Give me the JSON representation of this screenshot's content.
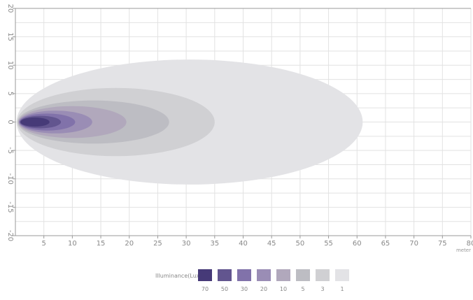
{
  "chart_data": {
    "type": "area",
    "subtype": "isolux-contour",
    "title": "",
    "xlabel": "meter",
    "ylabel": "",
    "xlim": [
      0,
      80
    ],
    "ylim": [
      -20,
      20
    ],
    "x_ticks": [
      5,
      10,
      15,
      20,
      25,
      30,
      35,
      40,
      45,
      50,
      55,
      60,
      65,
      70,
      75,
      80
    ],
    "y_ticks": [
      20,
      15,
      10,
      5,
      0,
      -5,
      -10,
      -15,
      -20
    ],
    "grid": true,
    "legend_title": "Illuminance(Lux)",
    "legend_position": "bottom-center",
    "series": [
      {
        "name": "1",
        "color": "#e3e3e6",
        "x_start": 0.2,
        "x_end": 61.0,
        "half_width": 11.0
      },
      {
        "name": "3",
        "color": "#d0d0d3",
        "x_start": 0.3,
        "x_end": 35.0,
        "half_width": 6.0
      },
      {
        "name": "5",
        "color": "#bdbdc3",
        "x_start": 0.4,
        "x_end": 27.0,
        "half_width": 3.8
      },
      {
        "name": "10",
        "color": "#b1a8bc",
        "x_start": 0.5,
        "x_end": 19.5,
        "half_width": 2.8
      },
      {
        "name": "20",
        "color": "#9a8db5",
        "x_start": 0.6,
        "x_end": 13.5,
        "half_width": 2.0
      },
      {
        "name": "30",
        "color": "#8172aa",
        "x_start": 0.7,
        "x_end": 10.5,
        "half_width": 1.5
      },
      {
        "name": "50",
        "color": "#62558f",
        "x_start": 0.8,
        "x_end": 8.0,
        "half_width": 1.1
      },
      {
        "name": "70",
        "color": "#463a78",
        "x_start": 0.9,
        "x_end": 6.0,
        "half_width": 0.8
      }
    ],
    "legend_items": [
      {
        "label": "70",
        "color": "#463a78"
      },
      {
        "label": "50",
        "color": "#62558f"
      },
      {
        "label": "30",
        "color": "#8172aa"
      },
      {
        "label": "20",
        "color": "#9a8db5"
      },
      {
        "label": "10",
        "color": "#b1a8bc"
      },
      {
        "label": "5",
        "color": "#bdbdc3"
      },
      {
        "label": "3",
        "color": "#d0d0d3"
      },
      {
        "label": "1",
        "color": "#e3e3e6"
      }
    ]
  }
}
